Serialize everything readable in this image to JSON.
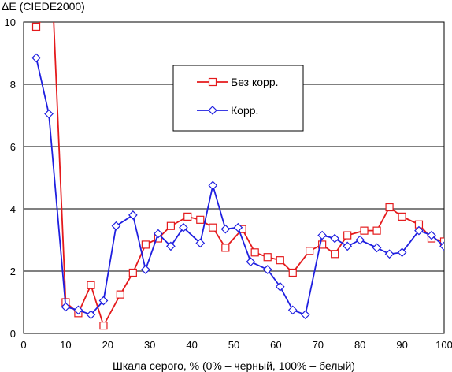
{
  "chart_data": {
    "type": "line",
    "title": "",
    "ylabel": "ΔE (CIEDE2000)",
    "xlabel": "Шкала серого, % (0% – черный, 100% – белый)",
    "xlim": [
      0,
      100
    ],
    "ylim": [
      0,
      10
    ],
    "x_ticks": [
      0,
      10,
      20,
      30,
      40,
      50,
      60,
      70,
      80,
      90,
      100
    ],
    "y_ticks": [
      0,
      2,
      4,
      6,
      8,
      10
    ],
    "grid": "horizontal",
    "legend_position": "upper-center",
    "series": [
      {
        "name": "Без корр.",
        "color": "#e41a1c",
        "marker": "square",
        "x": [
          3,
          7,
          10,
          13,
          16,
          19,
          23,
          26,
          29,
          32,
          35,
          39,
          42,
          45,
          48,
          52,
          55,
          58,
          61,
          64,
          68,
          71,
          74,
          77,
          81,
          84,
          87,
          90,
          94,
          97,
          100
        ],
        "y": [
          9.85,
          10.5,
          1.0,
          0.65,
          1.55,
          0.25,
          1.25,
          1.95,
          2.85,
          3.05,
          3.45,
          3.75,
          3.65,
          3.4,
          2.75,
          3.35,
          2.6,
          2.45,
          2.35,
          1.95,
          2.65,
          2.85,
          2.55,
          3.15,
          3.3,
          3.3,
          4.05,
          3.75,
          3.5,
          3.05,
          2.95
        ]
      },
      {
        "name": "Корр.",
        "color": "#1f1fe0",
        "marker": "diamond",
        "x": [
          3,
          6,
          10,
          13,
          16,
          19,
          22,
          26,
          29,
          32,
          35,
          38,
          42,
          45,
          48,
          51,
          54,
          58,
          61,
          64,
          67,
          71,
          74,
          77,
          80,
          84,
          87,
          90,
          94,
          97,
          100
        ],
        "y": [
          8.85,
          7.05,
          0.85,
          0.75,
          0.6,
          1.05,
          3.45,
          3.8,
          2.05,
          3.2,
          2.8,
          3.4,
          2.9,
          4.75,
          3.35,
          3.4,
          2.3,
          2.05,
          1.5,
          0.75,
          0.6,
          3.15,
          3.05,
          2.8,
          3.0,
          2.75,
          2.55,
          2.6,
          3.3,
          3.15,
          2.8
        ]
      }
    ]
  }
}
